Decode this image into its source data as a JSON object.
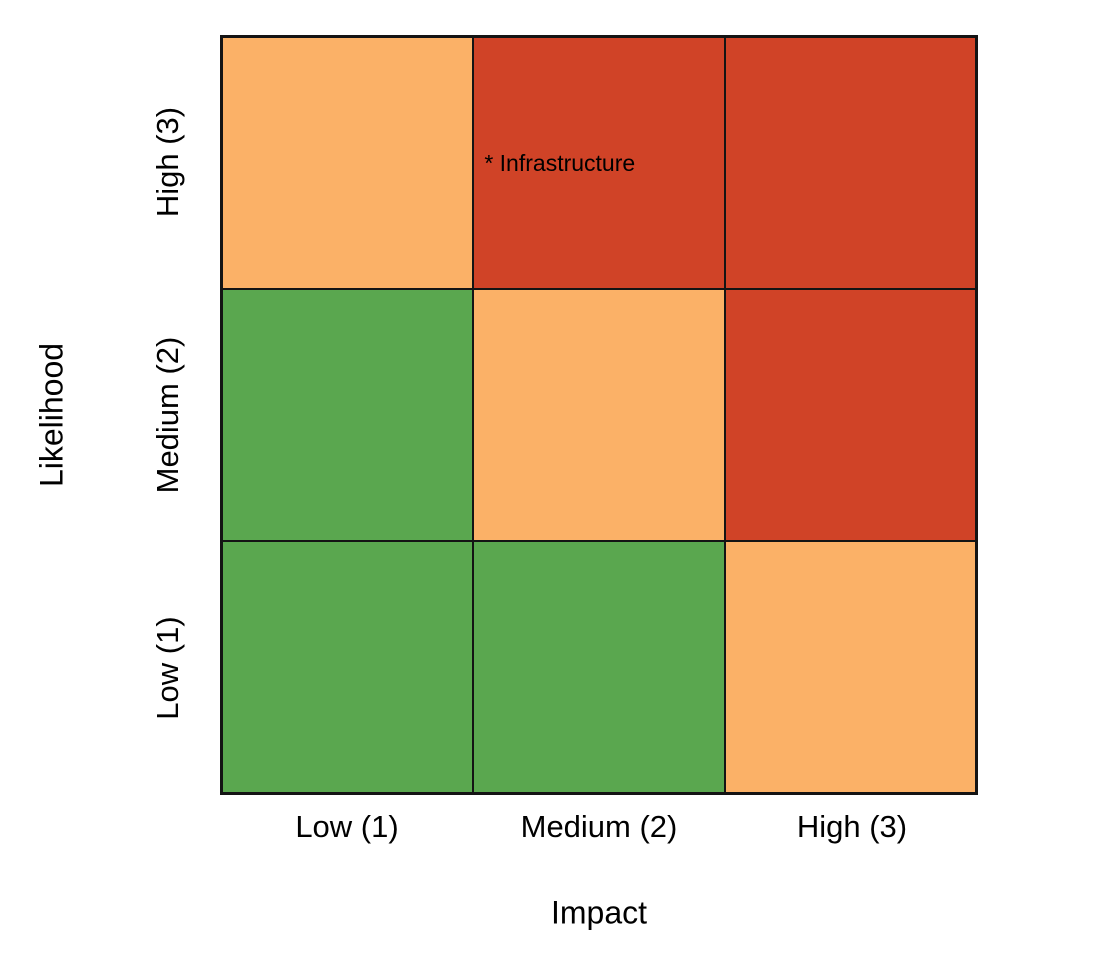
{
  "chart_data": {
    "type": "heatmap",
    "title": "",
    "xlabel": "Impact",
    "ylabel": "Likelihood",
    "x_tick_labels": [
      "Low (1)",
      "Medium (2)",
      "High (3)"
    ],
    "y_tick_labels_top_to_bottom": [
      "High (3)",
      "Medium (2)",
      "Low (1)"
    ],
    "cell_colors_rows_top_to_bottom": [
      [
        "orange",
        "red",
        "red"
      ],
      [
        "green",
        "orange",
        "red"
      ],
      [
        "green",
        "green",
        "orange"
      ]
    ],
    "color_map": {
      "green": "#5AA74F",
      "orange": "#FBB167",
      "red": "#D04327"
    },
    "annotations": [
      {
        "text": "* Infrastructure",
        "row": 0,
        "col": 1
      }
    ],
    "grid": true,
    "legend": "none",
    "axis_line_color": "#141414",
    "background_color": "#FFFFFF",
    "text_color": "#000000"
  }
}
